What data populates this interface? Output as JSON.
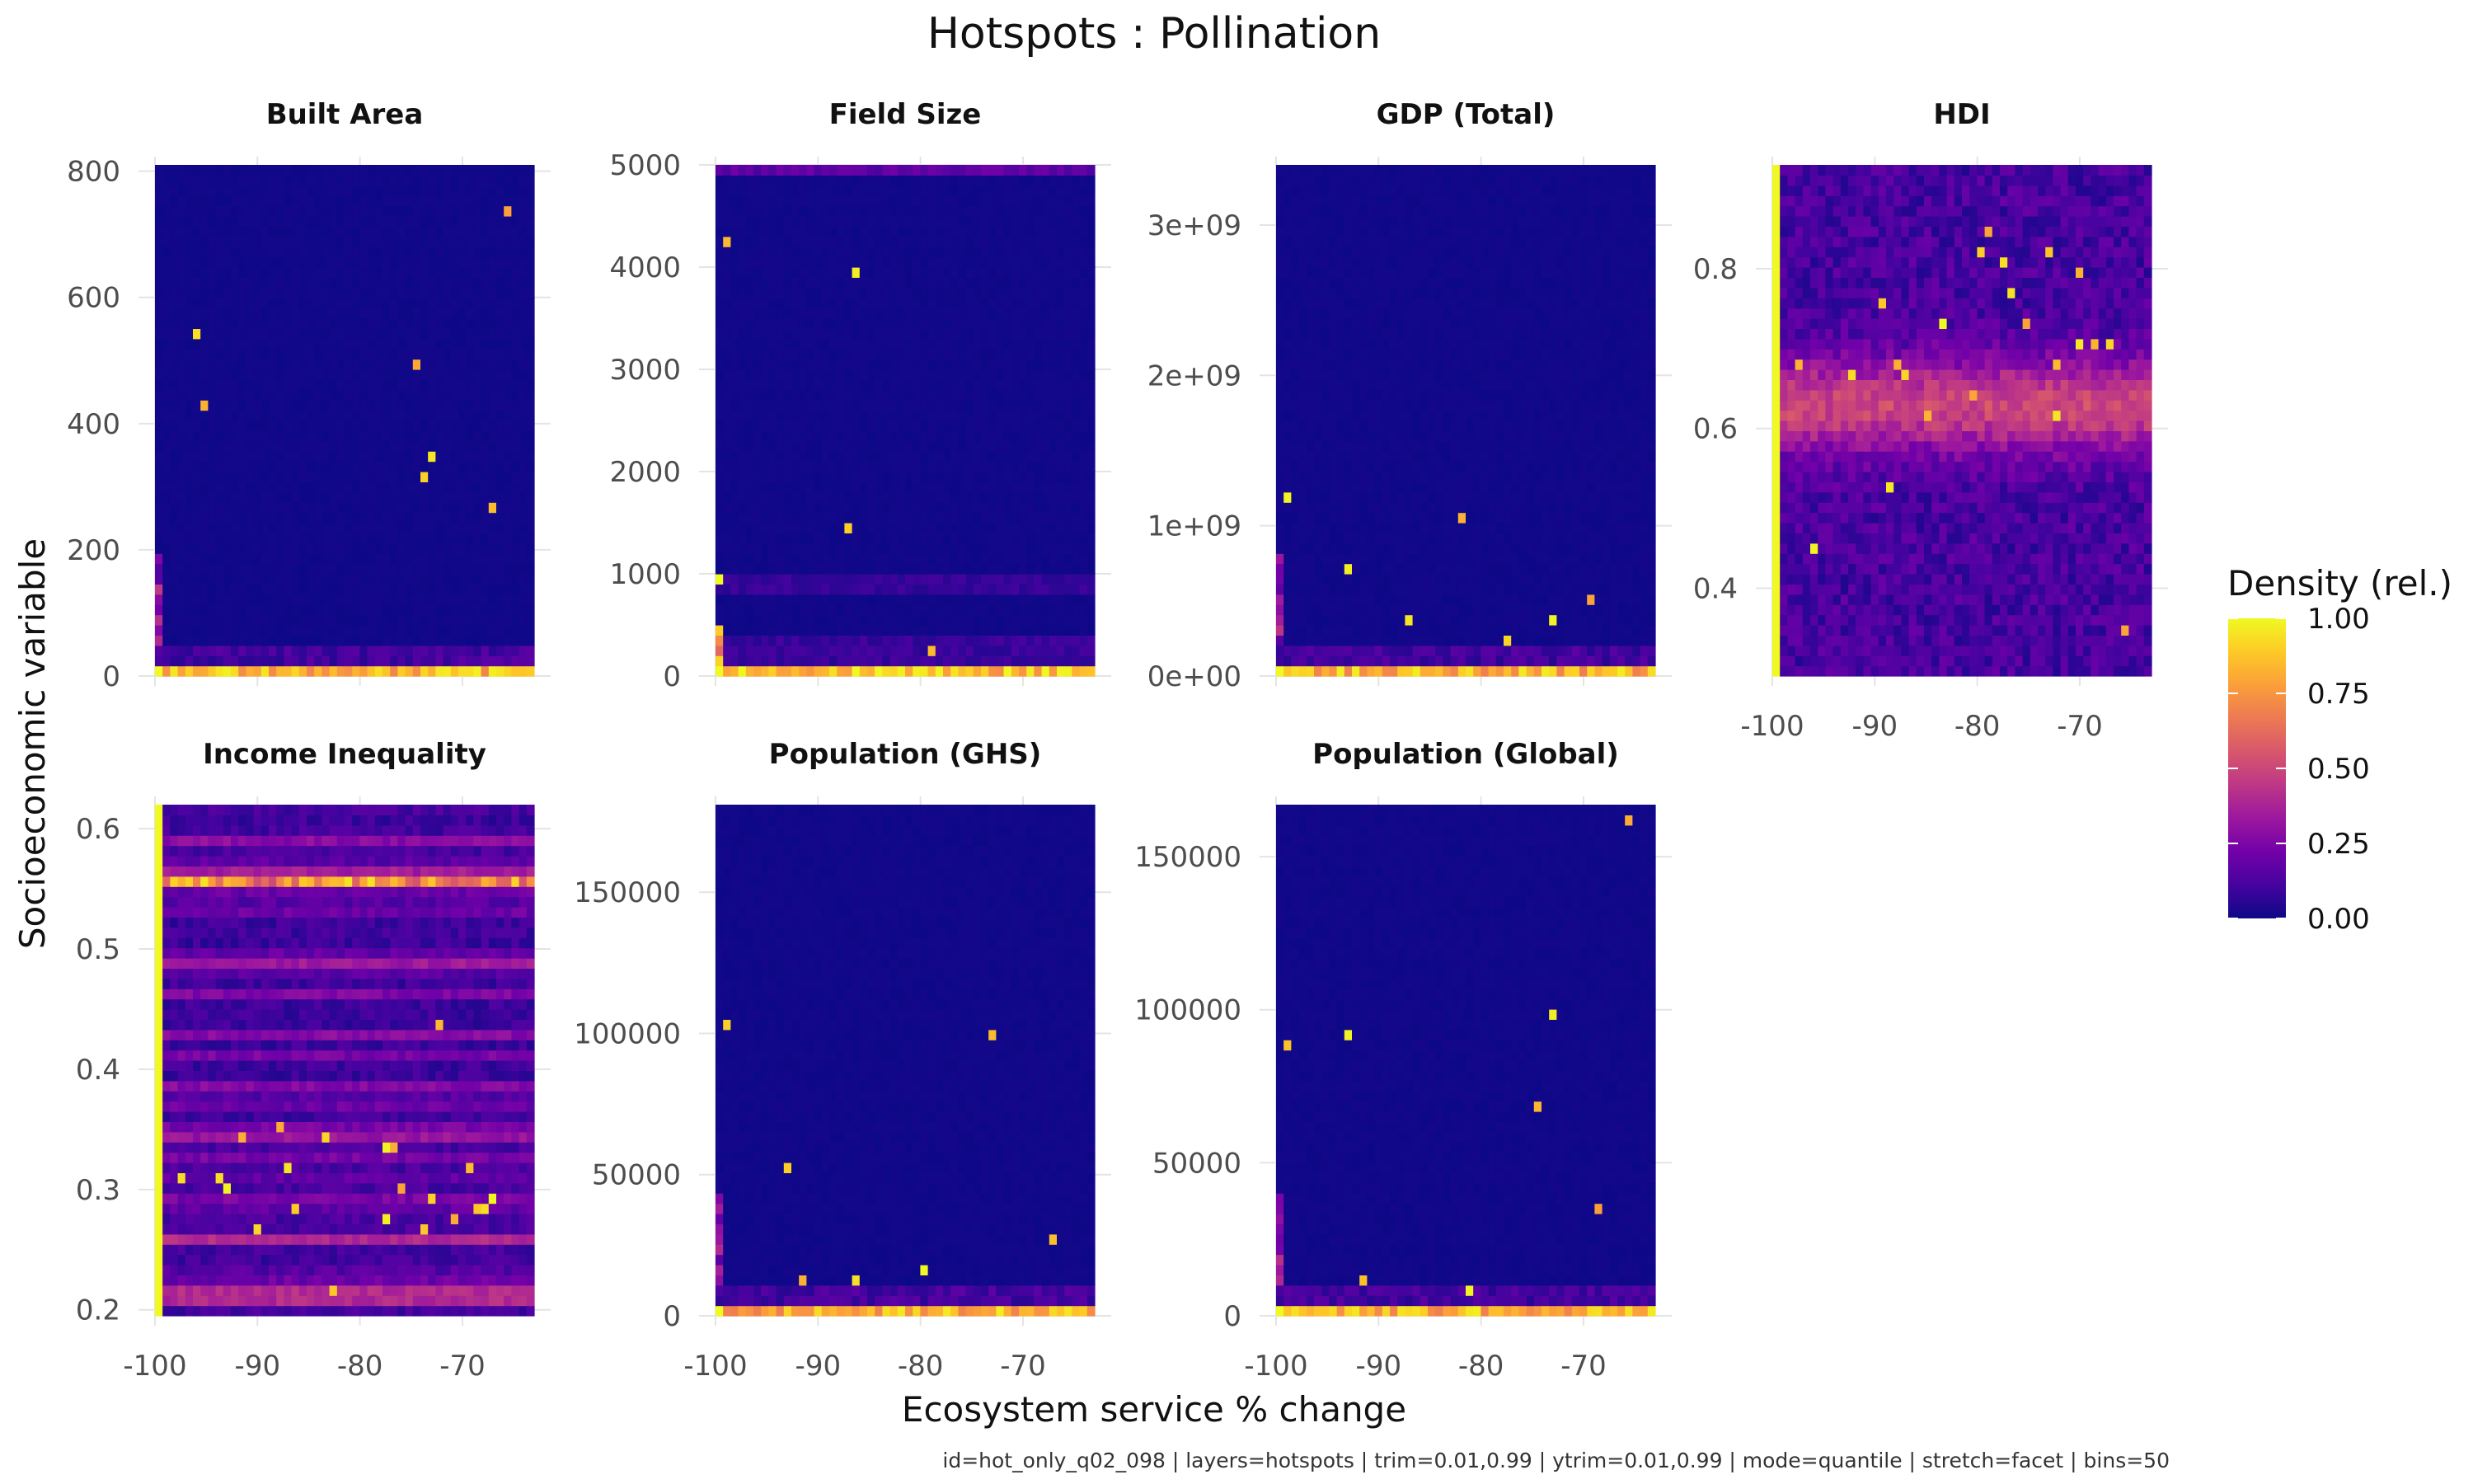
{
  "chart_data": {
    "type": "heatmap",
    "title": "Hotspots : Pollination",
    "xlabel": "Ecosystem service % change",
    "ylabel": "Socioeconomic variable",
    "caption": "id=hot_only_q02_098 | layers=hotspots | trim=0.01,0.99 | ytrim=0.01,0.99 | mode=quantile | stretch=facet | bins=50",
    "x_ticks": [
      "-100",
      "-90",
      "-80",
      "-70"
    ],
    "xlim": [
      -100,
      -63
    ],
    "bins": 50,
    "legend": {
      "title": "Density (rel.)",
      "position": "right",
      "ticks": [
        "1.00",
        "0.75",
        "0.50",
        "0.25",
        "0.00"
      ],
      "colors": [
        "#0d0887",
        "#46039f",
        "#7201a8",
        "#9c179e",
        "#bd3786",
        "#d8576b",
        "#ed7953",
        "#fb9f3a",
        "#fdca26",
        "#f0f921"
      ]
    },
    "facets": [
      {
        "name": "Built Area",
        "ylim": [
          0,
          810
        ],
        "y_ticks": [
          "800",
          "600",
          "400",
          "200",
          "0"
        ],
        "pattern": "bottom",
        "spots": [
          [
            0.12,
            0.53
          ],
          [
            0.73,
            0.42
          ],
          [
            0.11,
            0.66
          ],
          [
            0.68,
            0.6
          ],
          [
            0.71,
            0.39
          ],
          [
            0.88,
            0.33
          ],
          [
            0.93,
            0.91
          ]
        ]
      },
      {
        "name": "Field Size",
        "ylim": [
          0,
          5000
        ],
        "y_ticks": [
          "5000",
          "4000",
          "3000",
          "2000",
          "1000",
          "0"
        ],
        "pattern": "fieldsize",
        "spots": [
          [
            0.03,
            0.85
          ],
          [
            0.35,
            0.29
          ],
          [
            0.37,
            0.79
          ],
          [
            0.58,
            0.05
          ]
        ]
      },
      {
        "name": "GDP (Total)",
        "ylim": [
          0,
          3400000000.0
        ],
        "y_ticks": [
          "3e+09",
          "2e+09",
          "1e+09",
          "0e+00"
        ],
        "pattern": "bottom",
        "spots": [
          [
            0.03,
            0.35
          ],
          [
            0.18,
            0.21
          ],
          [
            0.35,
            0.11
          ],
          [
            0.49,
            0.31
          ],
          [
            0.73,
            0.11
          ],
          [
            0.82,
            0.15
          ],
          [
            0.6,
            0.07
          ]
        ]
      },
      {
        "name": "HDI",
        "ylim": [
          0.29,
          0.93
        ],
        "y_ticks": [
          "0.8",
          "0.6",
          "0.4"
        ],
        "pattern": "hdi",
        "spots": [
          [
            0.58,
            0.86
          ],
          [
            0.55,
            0.83
          ],
          [
            0.6,
            0.81
          ],
          [
            0.72,
            0.83
          ],
          [
            0.81,
            0.79
          ],
          [
            0.63,
            0.74
          ],
          [
            0.28,
            0.73
          ],
          [
            0.67,
            0.69
          ],
          [
            0.45,
            0.69
          ],
          [
            0.8,
            0.65
          ],
          [
            0.88,
            0.65
          ],
          [
            0.84,
            0.64
          ],
          [
            0.74,
            0.61
          ],
          [
            0.06,
            0.6
          ],
          [
            0.2,
            0.59
          ],
          [
            0.35,
            0.59
          ],
          [
            0.33,
            0.6
          ],
          [
            0.52,
            0.55
          ],
          [
            0.74,
            0.51
          ],
          [
            0.4,
            0.51
          ],
          [
            0.31,
            0.37
          ],
          [
            0.1,
            0.25
          ],
          [
            0.92,
            0.09
          ]
        ]
      },
      {
        "name": "Income Inequality",
        "ylim": [
          0.195,
          0.62
        ],
        "y_ticks": [
          "0.6",
          "0.5",
          "0.4",
          "0.3",
          "0.2"
        ],
        "pattern": "income",
        "spots": [
          [
            0.74,
            0.58
          ],
          [
            0.33,
            0.37
          ],
          [
            0.23,
            0.35
          ],
          [
            0.44,
            0.34
          ],
          [
            0.6,
            0.32
          ],
          [
            0.62,
            0.33
          ],
          [
            0.35,
            0.28
          ],
          [
            0.83,
            0.28
          ],
          [
            0.19,
            0.25
          ],
          [
            0.73,
            0.23
          ],
          [
            0.07,
            0.27
          ],
          [
            0.17,
            0.27
          ],
          [
            0.65,
            0.25
          ],
          [
            0.89,
            0.22
          ],
          [
            0.87,
            0.21
          ],
          [
            0.85,
            0.2
          ],
          [
            0.6,
            0.18
          ],
          [
            0.71,
            0.16
          ],
          [
            0.47,
            0.05
          ],
          [
            0.37,
            0.21
          ],
          [
            0.26,
            0.16
          ],
          [
            0.79,
            0.18
          ]
        ]
      },
      {
        "name": "Population (GHS)",
        "ylim": [
          0,
          181000
        ],
        "y_ticks": [
          "150000",
          "100000",
          "50000",
          "0"
        ],
        "pattern": "bottom",
        "spots": [
          [
            0.03,
            0.57
          ],
          [
            0.19,
            0.29
          ],
          [
            0.72,
            0.55
          ],
          [
            0.88,
            0.15
          ],
          [
            0.36,
            0.06
          ],
          [
            0.55,
            0.08
          ],
          [
            0.23,
            0.07
          ]
        ]
      },
      {
        "name": "Population (Global)",
        "ylim": [
          0,
          167000
        ],
        "y_ticks": [
          "150000",
          "100000",
          "50000",
          "0"
        ],
        "pattern": "bottom",
        "spots": [
          [
            0.03,
            0.53
          ],
          [
            0.19,
            0.55
          ],
          [
            0.72,
            0.59
          ],
          [
            0.69,
            0.41
          ],
          [
            0.23,
            0.07
          ],
          [
            0.5,
            0.05
          ],
          [
            0.84,
            0.2
          ],
          [
            0.93,
            0.97
          ]
        ]
      }
    ]
  }
}
